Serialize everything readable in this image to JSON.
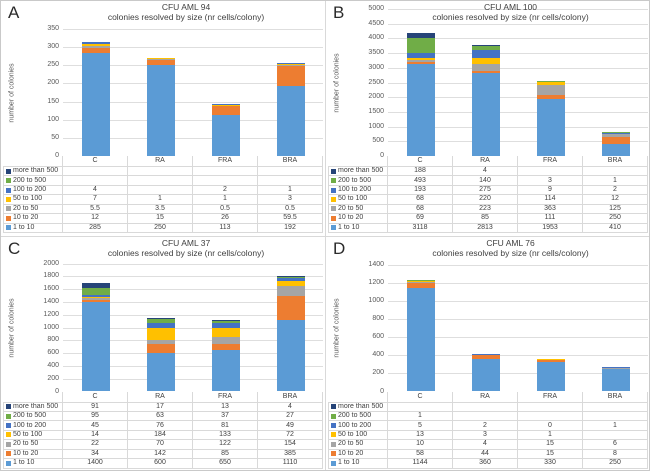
{
  "chart_data": [
    {
      "panel_label": "A",
      "type": "bar",
      "stacked": true,
      "grid": true,
      "legend_position": "data-table-left",
      "title": "CFU AML 94",
      "subtitle": "colonies resolved by size (nr cells/colony)",
      "ylabel": "number of colonies",
      "xlabel": "",
      "categories": [
        "C",
        "RA",
        "FRA",
        "BRA"
      ],
      "ylim": [
        0,
        350
      ],
      "ytick_step": 50,
      "series": [
        {
          "name": "more than 500",
          "color": "#264478",
          "values": [
            null,
            null,
            null,
            null
          ]
        },
        {
          "name": "200 to 500",
          "color": "#70AD47",
          "values": [
            null,
            null,
            null,
            null
          ]
        },
        {
          "name": "100 to 200",
          "color": "#4472C4",
          "values": [
            4,
            null,
            2,
            1
          ]
        },
        {
          "name": "50 to 100",
          "color": "#FFC000",
          "values": [
            7,
            1,
            1,
            3
          ]
        },
        {
          "name": "20 to 50",
          "color": "#A5A5A5",
          "values": [
            5.5,
            3.5,
            0.5,
            0.5
          ]
        },
        {
          "name": "10 to 20",
          "color": "#ED7D31",
          "values": [
            12,
            15,
            26,
            59.5
          ]
        },
        {
          "name": "1 to 10",
          "color": "#5B9BD5",
          "values": [
            285,
            250,
            113,
            192
          ]
        }
      ]
    },
    {
      "panel_label": "B",
      "type": "bar",
      "stacked": true,
      "grid": true,
      "legend_position": "data-table-left",
      "title": "CFU AML 100",
      "subtitle": "colonies resolved  by size (nr cells/colony)",
      "ylabel": "number of colonies",
      "xlabel": "",
      "categories": [
        "C",
        "RA",
        "FRA",
        "BRA"
      ],
      "ylim": [
        0,
        5000
      ],
      "ytick_step": 500,
      "series": [
        {
          "name": "more than 500",
          "color": "#264478",
          "values": [
            188,
            4,
            null,
            null
          ]
        },
        {
          "name": "200 to 500",
          "color": "#70AD47",
          "values": [
            493,
            140,
            3,
            1
          ]
        },
        {
          "name": "100 to 200",
          "color": "#4472C4",
          "values": [
            193,
            275,
            9,
            2
          ]
        },
        {
          "name": "50 to 100",
          "color": "#FFC000",
          "values": [
            68,
            220,
            114,
            12
          ]
        },
        {
          "name": "20 to 50",
          "color": "#A5A5A5",
          "values": [
            68,
            223,
            363,
            125
          ]
        },
        {
          "name": "10 to 20",
          "color": "#ED7D31",
          "values": [
            69,
            85,
            111,
            250
          ]
        },
        {
          "name": "1 to 10",
          "color": "#5B9BD5",
          "values": [
            3118,
            2813,
            1953,
            410
          ]
        }
      ]
    },
    {
      "panel_label": "C",
      "type": "bar",
      "stacked": true,
      "grid": true,
      "legend_position": "data-table-left",
      "title": "CFU AML 37",
      "subtitle": "colonies resolved  by size (nr cells/colony)",
      "ylabel": "number of colonies",
      "xlabel": "",
      "categories": [
        "C",
        "RA",
        "FRA",
        "BRA"
      ],
      "ylim": [
        0,
        2000
      ],
      "ytick_step": 200,
      "series": [
        {
          "name": "more than 500",
          "color": "#264478",
          "values": [
            91,
            17,
            13,
            4
          ]
        },
        {
          "name": "200 to 500",
          "color": "#70AD47",
          "values": [
            95,
            63,
            37,
            27
          ]
        },
        {
          "name": "100 to 200",
          "color": "#4472C4",
          "values": [
            45,
            76,
            81,
            49
          ]
        },
        {
          "name": "50 to 100",
          "color": "#FFC000",
          "values": [
            14,
            184,
            133,
            72
          ]
        },
        {
          "name": "20 to 50",
          "color": "#A5A5A5",
          "values": [
            22,
            70,
            122,
            154
          ]
        },
        {
          "name": "10 to 20",
          "color": "#ED7D31",
          "values": [
            34,
            142,
            85,
            385
          ]
        },
        {
          "name": "1 to 10",
          "color": "#5B9BD5",
          "values": [
            1400,
            600,
            650,
            1110
          ]
        }
      ]
    },
    {
      "panel_label": "D",
      "type": "bar",
      "stacked": true,
      "grid": true,
      "legend_position": "data-table-left",
      "title": "CFU AML 76",
      "subtitle": "colonies resolved by size (nr cells/colony)",
      "ylabel": "number of colonies",
      "xlabel": "",
      "categories": [
        "C",
        "RA",
        "FRA",
        "BRA"
      ],
      "ylim": [
        0,
        1400
      ],
      "ytick_step": 200,
      "series": [
        {
          "name": "more than 500",
          "color": "#264478",
          "values": [
            null,
            null,
            null,
            null
          ]
        },
        {
          "name": "200 to 500",
          "color": "#70AD47",
          "values": [
            1,
            null,
            null,
            null
          ]
        },
        {
          "name": "100 to 200",
          "color": "#4472C4",
          "values": [
            5,
            2,
            0,
            1
          ]
        },
        {
          "name": "50 to 100",
          "color": "#FFC000",
          "values": [
            13,
            3,
            1,
            null
          ]
        },
        {
          "name": "20 to 50",
          "color": "#A5A5A5",
          "values": [
            10,
            4,
            15,
            6
          ]
        },
        {
          "name": "10 to 20",
          "color": "#ED7D31",
          "values": [
            58,
            44,
            15,
            8
          ]
        },
        {
          "name": "1 to 10",
          "color": "#5B9BD5",
          "values": [
            1144,
            360,
            330,
            250
          ]
        }
      ]
    }
  ],
  "style": {
    "gridline_color": "#DEDEDE",
    "axis_line_color": "#BFBFBF",
    "table_border_color": "#D9D9D9",
    "axis_text_color": "#595959",
    "table_text_color": "#404040"
  }
}
